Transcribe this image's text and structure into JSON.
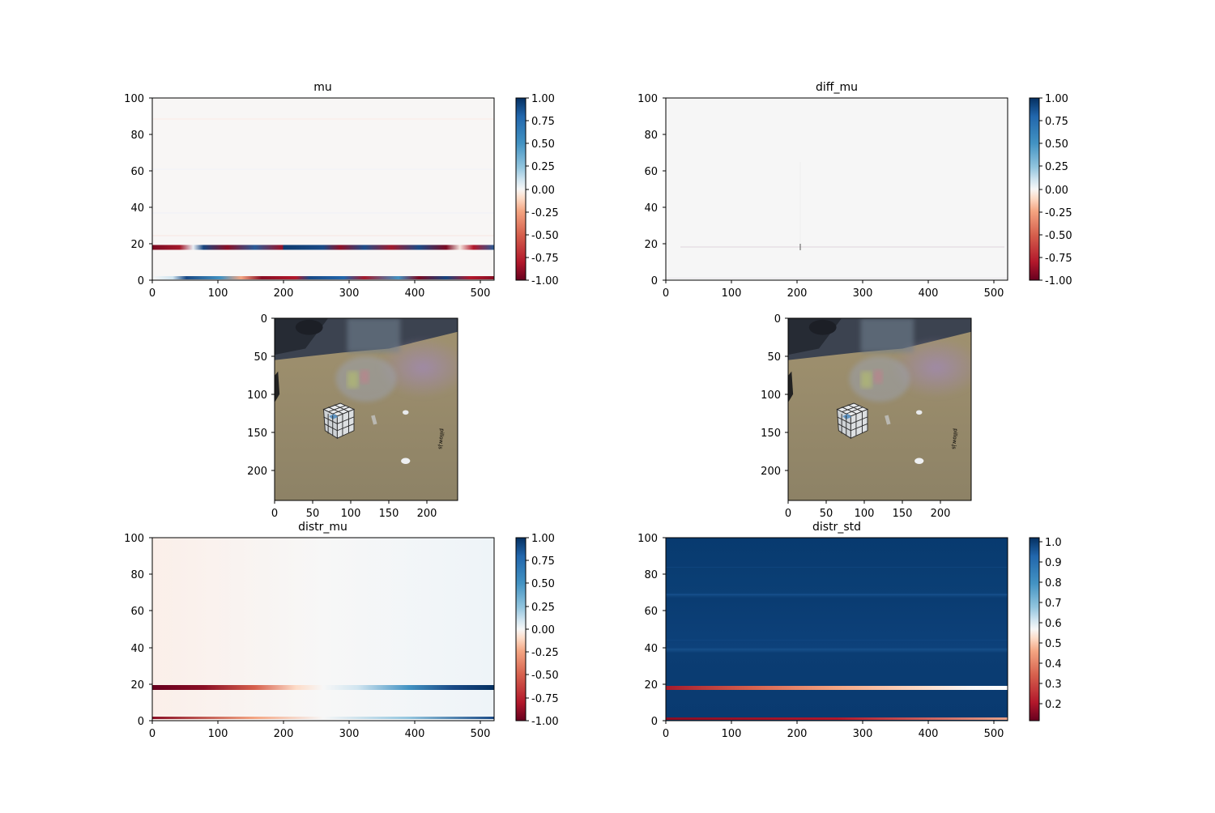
{
  "chart_data": [
    {
      "type": "heatmap",
      "title": "mu",
      "xlabel": "",
      "ylabel": "",
      "xlim": [
        0,
        520
      ],
      "ylim": [
        0,
        100
      ],
      "xticks": [
        0,
        100,
        200,
        300,
        400,
        500
      ],
      "yticks": [
        0,
        20,
        40,
        60,
        80,
        100
      ],
      "colormap": "RdBu",
      "colorbar": {
        "range": [
          -1.0,
          1.0
        ],
        "ticks": [
          "-1.00",
          "-0.75",
          "-0.50",
          "-0.25",
          "0.00",
          "0.25",
          "0.50",
          "0.75",
          "1.00"
        ]
      },
      "notes": "near-zero everywhere; strong alternating red/blue band near y=18 and y=1"
    },
    {
      "type": "heatmap",
      "title": "diff_mu",
      "xlabel": "",
      "ylabel": "",
      "xlim": [
        0,
        520
      ],
      "ylim": [
        0,
        100
      ],
      "xticks": [
        0,
        100,
        200,
        300,
        400,
        500
      ],
      "yticks": [
        0,
        20,
        40,
        60,
        80,
        100
      ],
      "colormap": "RdBu",
      "colorbar": {
        "range": [
          -1.0,
          1.0
        ],
        "ticks": [
          "-1.00",
          "-0.75",
          "-0.50",
          "-0.25",
          "0.00",
          "0.25",
          "0.50",
          "0.75",
          "1.00"
        ]
      },
      "notes": "almost entirely ~0; faint specks near y=18 and x=205"
    },
    {
      "type": "image",
      "title": "",
      "xlim": [
        0,
        240
      ],
      "ylim": [
        240,
        0
      ],
      "xticks": [
        0,
        50,
        100,
        150,
        200
      ],
      "yticks": [
        0,
        50,
        100,
        150,
        200
      ],
      "content": "camera frame of a Rubik's cube on a cardboard table with a blurred hand"
    },
    {
      "type": "image",
      "title": "",
      "xlim": [
        0,
        240
      ],
      "ylim": [
        240,
        0
      ],
      "xticks": [
        0,
        50,
        100,
        150,
        200
      ],
      "yticks": [
        0,
        50,
        100,
        150,
        200
      ],
      "content": "camera frame of a Rubik's cube on a cardboard table with a blurred hand"
    },
    {
      "type": "heatmap",
      "title": "distr_mu",
      "xlabel": "",
      "ylabel": "",
      "xlim": [
        0,
        520
      ],
      "ylim": [
        0,
        100
      ],
      "xticks": [
        0,
        100,
        200,
        300,
        400,
        500
      ],
      "yticks": [
        0,
        20,
        40,
        60,
        80,
        100
      ],
      "colormap": "RdBu",
      "colorbar": {
        "range": [
          -1.0,
          1.0
        ],
        "ticks": [
          "-1.00",
          "-0.75",
          "-0.50",
          "-0.25",
          "0.00",
          "0.25",
          "0.50",
          "0.75",
          "1.00"
        ]
      },
      "notes": "band at y=18 goes from -1 (x=0) to +1 (x=520); faint band at y=1"
    },
    {
      "type": "heatmap",
      "title": "distr_std",
      "xlabel": "",
      "ylabel": "",
      "xlim": [
        0,
        520
      ],
      "ylim": [
        0,
        100
      ],
      "xticks": [
        0,
        100,
        200,
        300,
        400,
        500
      ],
      "yticks": [
        0,
        20,
        40,
        60,
        80,
        100
      ],
      "colormap": "RdBu",
      "colorbar": {
        "range": [
          0.11,
          1.02
        ],
        "ticks": [
          "0.2",
          "0.3",
          "0.4",
          "0.5",
          "0.6",
          "0.7",
          "0.8",
          "0.9",
          "1.0"
        ],
        "tick_values": [
          0.2,
          0.3,
          0.4,
          0.5,
          0.6,
          0.7,
          0.8,
          0.9,
          1.0
        ]
      },
      "notes": "background ~1.0 (dark blue); band at y=18 rises from ~0.15 to ~0.65; band at y=1 ~0.2"
    }
  ]
}
